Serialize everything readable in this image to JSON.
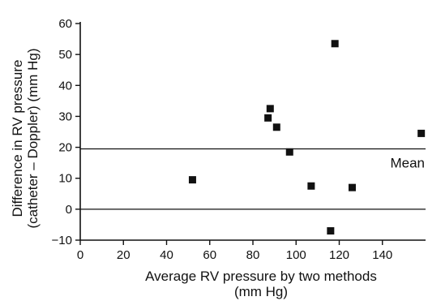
{
  "chart_data": {
    "type": "scatter",
    "xlabel": [
      "Average RV pressure by two methods",
      "(mm Hg)"
    ],
    "ylabel": [
      "Difference in RV pressure",
      "(catheter – Doppler) (mm Hg)"
    ],
    "xlim": [
      0,
      160
    ],
    "ylim": [
      -10,
      60
    ],
    "x_ticks": [
      0,
      20,
      40,
      60,
      80,
      100,
      120,
      140
    ],
    "y_ticks": [
      -10,
      0,
      10,
      20,
      30,
      40,
      50,
      60
    ],
    "x_tick_labels": [
      "0",
      "20",
      "40",
      "60",
      "80",
      "100",
      "120",
      "140"
    ],
    "y_tick_labels": [
      "−10",
      "0",
      "10",
      "20",
      "30",
      "40",
      "50",
      "60"
    ],
    "grid": false,
    "reference_lines": [
      {
        "y": 0,
        "label": ""
      },
      {
        "y": 19.5,
        "label": "Mean"
      }
    ],
    "points": [
      {
        "x": 52,
        "y": 9.5
      },
      {
        "x": 87,
        "y": 29.5
      },
      {
        "x": 88,
        "y": 32.5
      },
      {
        "x": 91,
        "y": 26.5
      },
      {
        "x": 97,
        "y": 18.5
      },
      {
        "x": 107,
        "y": 7.5
      },
      {
        "x": 116,
        "y": -7
      },
      {
        "x": 118,
        "y": 53.5
      },
      {
        "x": 126,
        "y": 7
      },
      {
        "x": 158,
        "y": 24.5
      }
    ],
    "marker": "square",
    "marker_color": "#111111"
  }
}
